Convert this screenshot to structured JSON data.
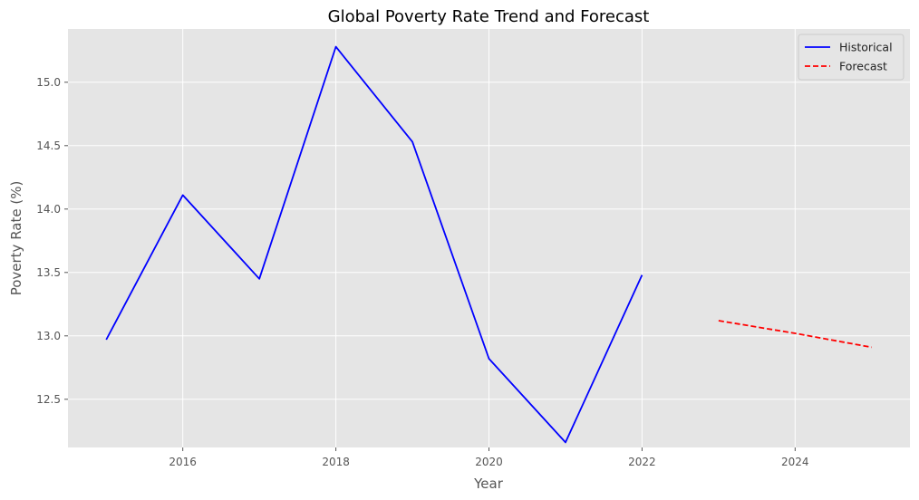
{
  "chart_data": {
    "type": "line",
    "title": "Global Poverty Rate Trend and Forecast",
    "xlabel": "Year",
    "ylabel": "Poverty Rate (%)",
    "xlim": [
      2014.5,
      2025.5
    ],
    "ylim": [
      12.12,
      15.42
    ],
    "xticks": [
      2016,
      2018,
      2020,
      2022,
      2024
    ],
    "yticks": [
      12.5,
      13.0,
      13.5,
      14.0,
      14.5,
      15.0
    ],
    "ytick_labels": [
      "12.5",
      "13.0",
      "13.5",
      "14.0",
      "14.5",
      "15.0"
    ],
    "grid": true,
    "legend_position": "top-right",
    "series": [
      {
        "name": "Historical",
        "color": "#0000ff",
        "style": "solid",
        "x": [
          2015,
          2016,
          2017,
          2018,
          2019,
          2020,
          2021,
          2022
        ],
        "values": [
          12.97,
          14.11,
          13.45,
          15.28,
          14.53,
          12.82,
          12.16,
          13.48
        ]
      },
      {
        "name": "Forecast",
        "color": "#ff0000",
        "style": "dashed",
        "x": [
          2023,
          2024,
          2025
        ],
        "values": [
          13.12,
          13.02,
          12.91
        ]
      }
    ]
  }
}
